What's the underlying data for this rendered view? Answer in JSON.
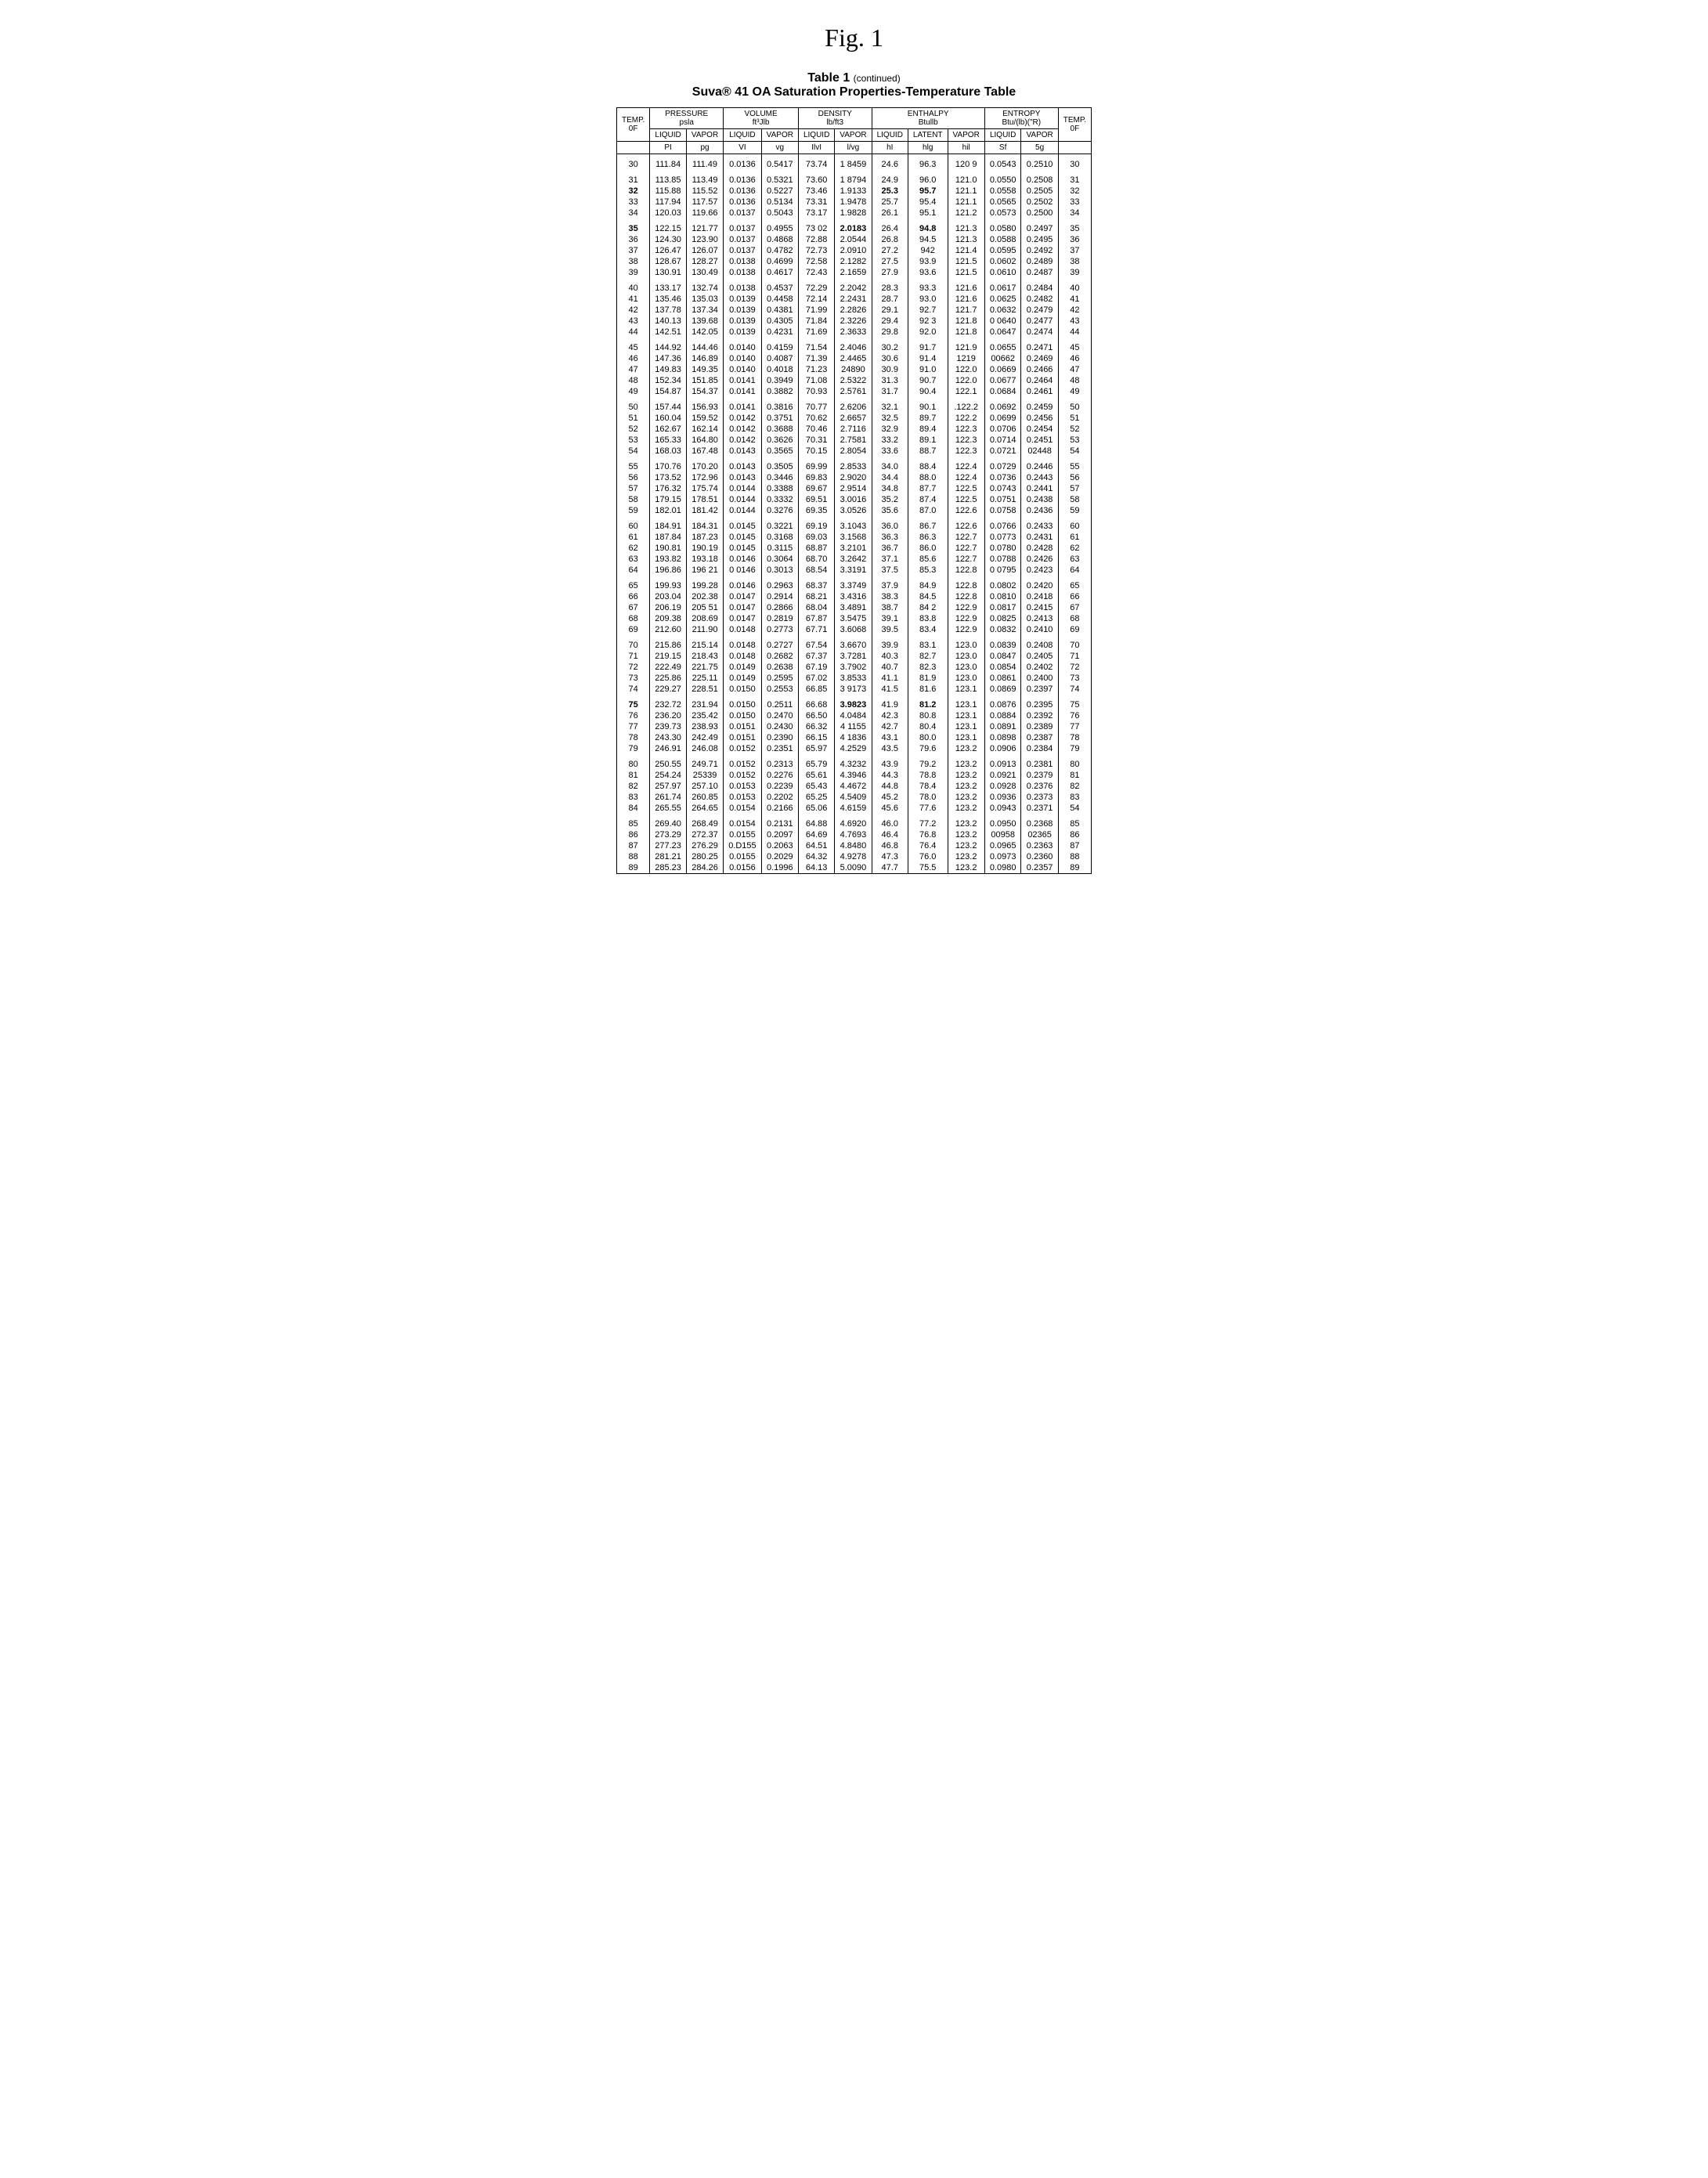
{
  "figure_label": "Fig. 1",
  "table_label": "Table 1",
  "table_label_suffix": "(continued)",
  "table_title": "Suva® 41 OA Saturation Properties-Temperature Table",
  "header": {
    "groups": [
      {
        "label": "TEMP.",
        "sub": "0F",
        "span": 1
      },
      {
        "label": "PRESSURE",
        "unit": "psla",
        "span": 2
      },
      {
        "label": "VOLUME",
        "unit": "ft³Jlb",
        "span": 2
      },
      {
        "label": "DENSITY",
        "unit": "lb/ft3",
        "span": 2
      },
      {
        "label": "ENTHALPY",
        "unit": "Btullb",
        "span": 3
      },
      {
        "label": "ENTROPY",
        "unit": "Btu/(lb)(\"R)",
        "span": 2
      },
      {
        "label": "TEMP.",
        "sub": "0F",
        "span": 1
      }
    ],
    "cols": [
      {
        "l1": "LIQUID",
        "l2": "PI"
      },
      {
        "l1": "VAPOR",
        "l2": "pg"
      },
      {
        "l1": "LIQUID",
        "l2": "VI"
      },
      {
        "l1": "VAPOR",
        "l2": "vg"
      },
      {
        "l1": "LIQUID",
        "l2": "IlvI"
      },
      {
        "l1": "VAPOR",
        "l2": "l/vg"
      },
      {
        "l1": "LIQUID",
        "l2": "hI"
      },
      {
        "l1": "LATENT",
        "l2": "hlg"
      },
      {
        "l1": "VAPOR",
        "l2": "hil",
        "bold": true
      },
      {
        "l1": "LIQUID",
        "l2": "Sf"
      },
      {
        "l1": "VAPOR",
        "l2": "5g"
      }
    ]
  },
  "rows": [
    {
      "t": "30",
      "c": [
        "111.84",
        "111.49",
        "0.0136",
        "0.5417",
        "73.74",
        "1 8459",
        "24.6",
        "96.3",
        "120 9",
        "0.0543",
        "0.2510"
      ],
      "g": true
    },
    {
      "t": "31",
      "c": [
        "113.85",
        "113.49",
        "0.0136",
        "0.5321",
        "73.60",
        "1 8794",
        "24.9",
        "96.0",
        "121.0",
        "0.0550",
        "0.2508"
      ],
      "g": true
    },
    {
      "t": "32",
      "c": [
        "115.88",
        "115.52",
        "0.0136",
        "0.5227",
        "73.46",
        "1.9133",
        "25.3",
        "95.7",
        "121.1",
        "0.0558",
        "0.2505"
      ],
      "b": [
        0,
        7,
        8
      ]
    },
    {
      "t": "33",
      "c": [
        "117.94",
        "117.57",
        "0.0136",
        "0.5134",
        "73.31",
        "1.9478",
        "25.7",
        "95.4",
        "121.1",
        "0.0565",
        "0.2502"
      ]
    },
    {
      "t": "34",
      "c": [
        "120.03",
        "119.66",
        "0.0137",
        "0.5043",
        "73.17",
        "1.9828",
        "26.1",
        "95.1",
        "121.2",
        "0.0573",
        "0.2500"
      ]
    },
    {
      "t": "35",
      "c": [
        "122.15",
        "121.77",
        "0.0137",
        "0.4955",
        "73 02",
        "2.0183",
        "26.4",
        "94.8",
        "121.3",
        "0.0580",
        "0.2497"
      ],
      "b": [
        0,
        6,
        8
      ],
      "g": true
    },
    {
      "t": "36",
      "c": [
        "124.30",
        "123.90",
        "0.0137",
        "0.4868",
        "72.88",
        "2.0544",
        "26.8",
        "94.5",
        "121.3",
        "0.0588",
        "0.2495"
      ]
    },
    {
      "t": "37",
      "c": [
        "126.47",
        "126.07",
        "0.0137",
        "0.4782",
        "72.73",
        "2.0910",
        "27.2",
        "942",
        "121.4",
        "0.0595",
        "0.2492"
      ]
    },
    {
      "t": "38",
      "c": [
        "128.67",
        "128.27",
        "0.0138",
        "0.4699",
        "72.58",
        "2.1282",
        "27.5",
        "93.9",
        "121.5",
        "0.0602",
        "0.2489"
      ]
    },
    {
      "t": "39",
      "c": [
        "130.91",
        "130.49",
        "0.0138",
        "0.4617",
        "72.43",
        "2.1659",
        "27.9",
        "93.6",
        "121.5",
        "0.0610",
        "0.2487"
      ]
    },
    {
      "t": "40",
      "c": [
        "133.17",
        "132.74",
        "0.0138",
        "0.4537",
        "72.29",
        "2.2042",
        "28.3",
        "93.3",
        "121.6",
        "0.0617",
        "0.2484"
      ],
      "g": true
    },
    {
      "t": "41",
      "c": [
        "135.46",
        "135.03",
        "0.0139",
        "0.4458",
        "72.14",
        "2.2431",
        "28.7",
        "93.0",
        "121.6",
        "0.0625",
        "0.2482"
      ]
    },
    {
      "t": "42",
      "c": [
        "137.78",
        "137.34",
        "0.0139",
        "0.4381",
        "71.99",
        "2.2826",
        "29.1",
        "92.7",
        "121.7",
        "0.0632",
        "0.2479"
      ]
    },
    {
      "t": "43",
      "c": [
        "140.13",
        "139.68",
        "0.0139",
        "0.4305",
        "71.84",
        "2.3226",
        "29.4",
        "92 3",
        "121.8",
        "0 0640",
        "0.2477"
      ]
    },
    {
      "t": "44",
      "c": [
        "142.51",
        "142.05",
        "0.0139",
        "0.4231",
        "71.69",
        "2.3633",
        "29.8",
        "92.0",
        "121.8",
        "0.0647",
        "0.2474"
      ]
    },
    {
      "t": "45",
      "c": [
        "144.92",
        "144.46",
        "0.0140",
        "0.4159",
        "71.54",
        "2.4046",
        "30.2",
        "91.7",
        "121.9",
        "0.0655",
        "0.2471"
      ],
      "g": true
    },
    {
      "t": "46",
      "c": [
        "147.36",
        "146.89",
        "0.0140",
        "0.4087",
        "71.39",
        "2.4465",
        "30.6",
        "91.4",
        "1219",
        "00662",
        "0.2469"
      ]
    },
    {
      "t": "47",
      "c": [
        "149.83",
        "149.35",
        "0.0140",
        "0.4018",
        "71.23",
        "24890",
        "30.9",
        "91.0",
        "122.0",
        "0.0669",
        "0.2466"
      ]
    },
    {
      "t": "48",
      "c": [
        "152.34",
        "151.85",
        "0.0141",
        "0.3949",
        "71.08",
        "2.5322",
        "31.3",
        "90.7",
        "122.0",
        "0.0677",
        "0.2464"
      ]
    },
    {
      "t": "49",
      "c": [
        "154.87",
        "154.37",
        "0.0141",
        "0.3882",
        "70.93",
        "2.5761",
        "31.7",
        "90.4",
        "122.1",
        "0.0684",
        "0.2461"
      ]
    },
    {
      "t": "50",
      "c": [
        "157.44",
        "156.93",
        "0.0141",
        "0.3816",
        "70.77",
        "2.6206",
        "32.1",
        "90.1",
        ".122.2",
        "0.0692",
        "0.2459"
      ],
      "g": true
    },
    {
      "t": "51",
      "c": [
        "160.04",
        "159.52",
        "0.0142",
        "0.3751",
        "70.62",
        "2.6657",
        "32.5",
        "89.7",
        "122.2",
        "0.0699",
        "0.2456"
      ]
    },
    {
      "t": "52",
      "c": [
        "162.67",
        "162.14",
        "0.0142",
        "0.3688",
        "70.46",
        "2.7116",
        "32.9",
        "89.4",
        "122.3",
        "0.0706",
        "0.2454"
      ]
    },
    {
      "t": "53",
      "c": [
        "165.33",
        "164.80",
        "0.0142",
        "0.3626",
        "70.31",
        "2.7581",
        "33.2",
        "89.1",
        "122.3",
        "0.0714",
        "0.2451"
      ]
    },
    {
      "t": "54",
      "c": [
        "168.03",
        "167.48",
        "0.0143",
        "0.3565",
        "70.15",
        "2.8054",
        "33.6",
        "88.7",
        "122.3",
        "0.0721",
        "02448"
      ]
    },
    {
      "t": "55",
      "c": [
        "170.76",
        "170.20",
        "0.0143",
        "0.3505",
        "69.99",
        "2.8533",
        "34.0",
        "88.4",
        "122.4",
        "0.0729",
        "0.2446"
      ],
      "g": true
    },
    {
      "t": "56",
      "c": [
        "173.52",
        "172.96",
        "0.0143",
        "0.3446",
        "69.83",
        "2.9020",
        "34.4",
        "88.0",
        "122.4",
        "0.0736",
        "0.2443"
      ]
    },
    {
      "t": "57",
      "c": [
        "176.32",
        "175.74",
        "0.0144",
        "0.3388",
        "69.67",
        "2.9514",
        "34.8",
        "87.7",
        "122.5",
        "0.0743",
        "0.2441"
      ]
    },
    {
      "t": "58",
      "c": [
        "179.15",
        "178.51",
        "0.0144",
        "0.3332",
        "69.51",
        "3.0016",
        "35.2",
        "87.4",
        "122.5",
        "0.0751",
        "0.2438"
      ]
    },
    {
      "t": "59",
      "c": [
        "182.01",
        "181.42",
        "0.0144",
        "0.3276",
        "69.35",
        "3.0526",
        "35.6",
        "87.0",
        "122.6",
        "0.0758",
        "0.2436"
      ]
    },
    {
      "t": "60",
      "c": [
        "184.91",
        "184.31",
        "0.0145",
        "0.3221",
        "69.19",
        "3.1043",
        "36.0",
        "86.7",
        "122.6",
        "0.0766",
        "0.2433"
      ],
      "g": true
    },
    {
      "t": "61",
      "c": [
        "187.84",
        "187.23",
        "0.0145",
        "0.3168",
        "69.03",
        "3.1568",
        "36.3",
        "86.3",
        "122.7",
        "0.0773",
        "0.2431"
      ]
    },
    {
      "t": "62",
      "c": [
        "190.81",
        "190.19",
        "0.0145",
        "0.3115",
        "68.87",
        "3.2101",
        "36.7",
        "86.0",
        "122.7",
        "0.0780",
        "0.2428"
      ]
    },
    {
      "t": "63",
      "c": [
        "193.82",
        "193.18",
        "0.0146",
        "0.3064",
        "68.70",
        "3.2642",
        "37.1",
        "85.6",
        "122.7",
        "0.0788",
        "0.2426"
      ]
    },
    {
      "t": "64",
      "c": [
        "196.86",
        "196 21",
        "0 0146",
        "0.3013",
        "68.54",
        "3.3191",
        "37.5",
        "85.3",
        "122.8",
        "0 0795",
        "0.2423"
      ]
    },
    {
      "t": "65",
      "c": [
        "199.93",
        "199.28",
        "0.0146",
        "0.2963",
        "68.37",
        "3.3749",
        "37.9",
        "84.9",
        "122.8",
        "0.0802",
        "0.2420"
      ],
      "g": true
    },
    {
      "t": "66",
      "c": [
        "203.04",
        "202.38",
        "0.0147",
        "0.2914",
        "68.21",
        "3.4316",
        "38.3",
        "84.5",
        "122.8",
        "0.0810",
        "0.2418"
      ]
    },
    {
      "t": "67",
      "c": [
        "206.19",
        "205 51",
        "0.0147",
        "0.2866",
        "68.04",
        "3.4891",
        "38.7",
        "84 2",
        "122.9",
        "0.0817",
        "0.2415"
      ]
    },
    {
      "t": "68",
      "c": [
        "209.38",
        "208.69",
        "0.0147",
        "0.2819",
        "67.87",
        "3.5475",
        "39.1",
        "83.8",
        "122.9",
        "0.0825",
        "0.2413"
      ]
    },
    {
      "t": "69",
      "c": [
        "212.60",
        "211.90",
        "0.0148",
        "0.2773",
        "67.71",
        "3.6068",
        "39.5",
        "83.4",
        "122.9",
        "0.0832",
        "0.2410"
      ]
    },
    {
      "t": "70",
      "c": [
        "215.86",
        "215.14",
        "0.0148",
        "0.2727",
        "67.54",
        "3.6670",
        "39.9",
        "83.1",
        "123.0",
        "0.0839",
        "0.2408"
      ],
      "g": true
    },
    {
      "t": "71",
      "c": [
        "219.15",
        "218.43",
        "0.0148",
        "0.2682",
        "67.37",
        "3.7281",
        "40.3",
        "82.7",
        "123.0",
        "0.0847",
        "0.2405"
      ]
    },
    {
      "t": "72",
      "c": [
        "222.49",
        "221.75",
        "0.0149",
        "0.2638",
        "67.19",
        "3.7902",
        "40.7",
        "82.3",
        "123.0",
        "0.0854",
        "0.2402"
      ]
    },
    {
      "t": "73",
      "c": [
        "225.86",
        "225.11",
        "0.0149",
        "0.2595",
        "67.02",
        "3.8533",
        "41.1",
        "81.9",
        "123.0",
        "0.0861",
        "0.2400"
      ]
    },
    {
      "t": "74",
      "c": [
        "229.27",
        "228.51",
        "0.0150",
        "0.2553",
        "66.85",
        "3 9173",
        "41.5",
        "81.6",
        "123.1",
        "0.0869",
        "0.2397"
      ]
    },
    {
      "t": "75",
      "c": [
        "232.72",
        "231.94",
        "0.0150",
        "0.2511",
        "66.68",
        "3.9823",
        "41.9",
        "81.2",
        "123.1",
        "0.0876",
        "0.2395"
      ],
      "b": [
        0,
        6,
        8
      ],
      "g": true
    },
    {
      "t": "76",
      "c": [
        "236.20",
        "235.42",
        "0.0150",
        "0.2470",
        "66.50",
        "4.0484",
        "42.3",
        "80.8",
        "123.1",
        "0.0884",
        "0.2392"
      ]
    },
    {
      "t": "77",
      "c": [
        "239.73",
        "238.93",
        "0.0151",
        "0.2430",
        "66.32",
        "4 1155",
        "42.7",
        "80.4",
        "123.1",
        "0.0891",
        "0.2389"
      ]
    },
    {
      "t": "78",
      "c": [
        "243.30",
        "242.49",
        "0.0151",
        "0.2390",
        "66.15",
        "4 1836",
        "43.1",
        "80.0",
        "123.1",
        "0.0898",
        "0.2387"
      ]
    },
    {
      "t": "79",
      "c": [
        "246.91",
        "246.08",
        "0.0152",
        "0.2351",
        "65.97",
        "4.2529",
        "43.5",
        "79.6",
        "123.2",
        "0.0906",
        "0.2384"
      ]
    },
    {
      "t": "80",
      "c": [
        "250.55",
        "249.71",
        "0.0152",
        "0.2313",
        "65.79",
        "4.3232",
        "43.9",
        "79.2",
        "123.2",
        "0.0913",
        "0.2381"
      ],
      "g": true
    },
    {
      "t": "81",
      "c": [
        "254.24",
        "25339",
        "0.0152",
        "0.2276",
        "65.61",
        "4.3946",
        "44.3",
        "78.8",
        "123.2",
        "0.0921",
        "0.2379"
      ]
    },
    {
      "t": "82",
      "c": [
        "257.97",
        "257.10",
        "0.0153",
        "0.2239",
        "65.43",
        "4.4672",
        "44.8",
        "78.4",
        "123.2",
        "0.0928",
        "0.2376"
      ]
    },
    {
      "t": "83",
      "c": [
        "261.74",
        "260.85",
        "0.0153",
        "0.2202",
        "65.25",
        "4.5409",
        "45.2",
        "78.0",
        "123.2",
        "0.0936",
        "0.2373"
      ]
    },
    {
      "t": "84",
      "c": [
        "265.55",
        "264.65",
        "0.0154",
        "0.2166",
        "65.06",
        "4.6159",
        "45.6",
        "77.6",
        "123.2",
        "0.0943",
        "0.2371"
      ],
      "tend": "54"
    },
    {
      "t": "85",
      "c": [
        "269.40",
        "268.49",
        "0.0154",
        "0.2131",
        "64.88",
        "4.6920",
        "46.0",
        "77.2",
        "123.2",
        "0.0950",
        "0.2368"
      ],
      "g": true
    },
    {
      "t": "86",
      "c": [
        "273.29",
        "272.37",
        "0.0155",
        "0.2097",
        "64.69",
        "4.7693",
        "46.4",
        "76.8",
        "123.2",
        "00958",
        "02365"
      ]
    },
    {
      "t": "87",
      "c": [
        "277.23",
        "276.29",
        "0.D155",
        "0.2063",
        "64.51",
        "4.8480",
        "46.8",
        "76.4",
        "123.2",
        "0.0965",
        "0.2363"
      ]
    },
    {
      "t": "88",
      "c": [
        "281.21",
        "280.25",
        "0.0155",
        "0.2029",
        "64.32",
        "4.9278",
        "47.3",
        "76.0",
        "123.2",
        "0.0973",
        "0.2360"
      ]
    },
    {
      "t": "89",
      "c": [
        "285.23",
        "284.26",
        "0.0156",
        "0.1996",
        "64.13",
        "5.0090",
        "47.7",
        "75.5",
        "123.2",
        "0.0980",
        "0.2357"
      ]
    }
  ]
}
